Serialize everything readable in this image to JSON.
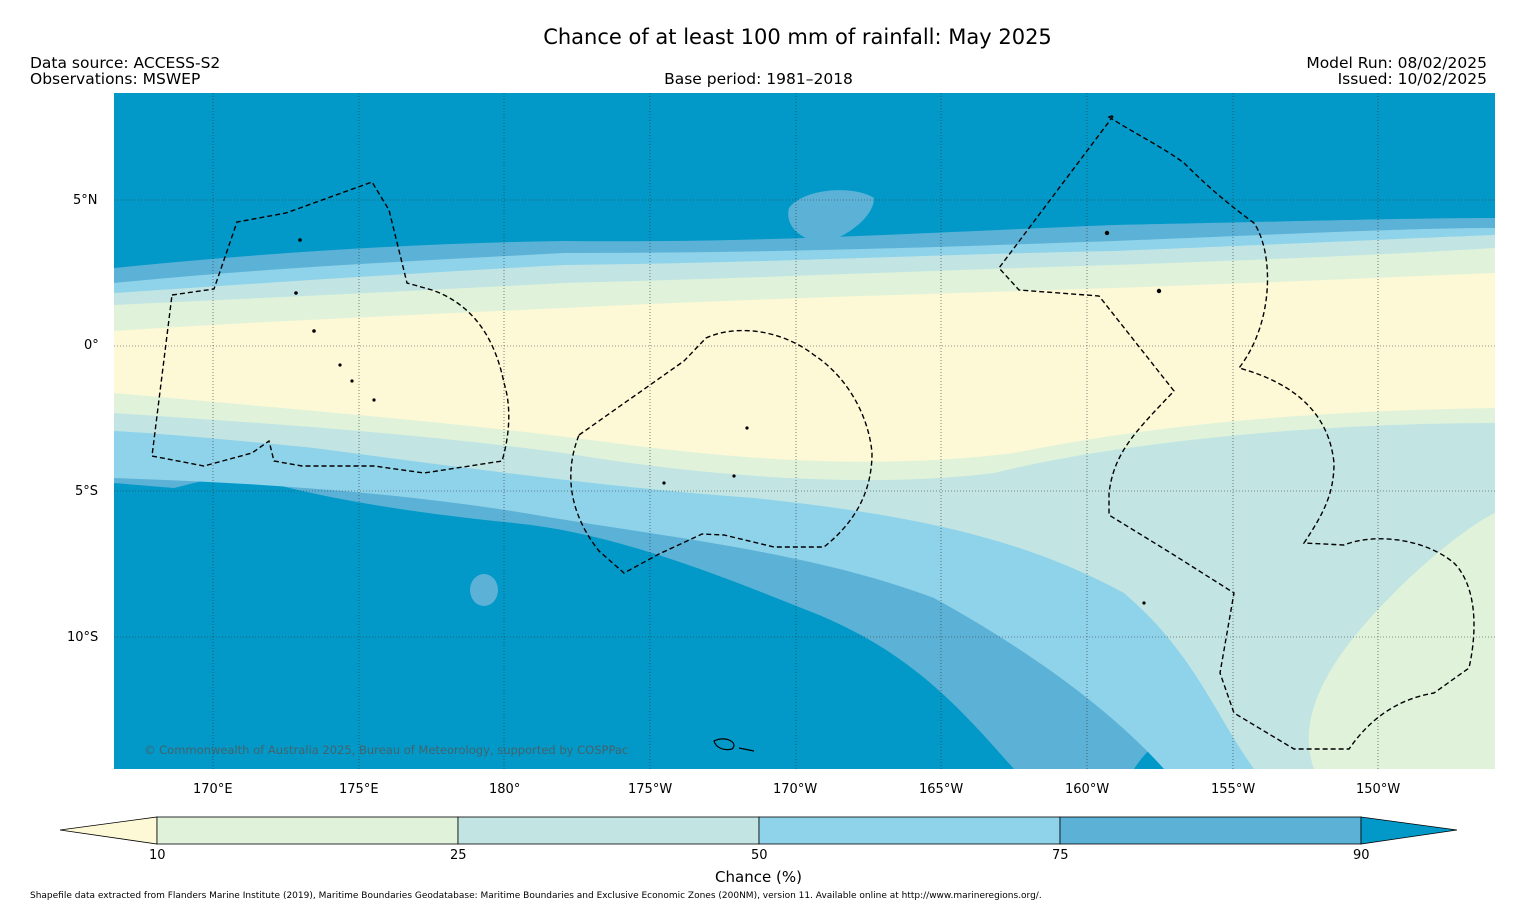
{
  "title": "Chance of at least 100 mm of rainfall: May 2025",
  "header": {
    "data_source": "Data source: ACCESS-S2",
    "observations": "Observations: MSWEP",
    "base_period": "Base period: 1981–2018",
    "model_run": "Model Run: 08/02/2025",
    "issued": "Issued: 10/02/2025"
  },
  "map": {
    "lat_labels": [
      "5°N",
      "0°",
      "5°S",
      "10°S"
    ],
    "lon_labels": [
      "170°E",
      "175°E",
      "180°",
      "175°W",
      "170°W",
      "165°W",
      "160°W",
      "155°W",
      "150°W"
    ],
    "copyright": "© Commonwealth of Australia 2025, Bureau of Meteorology, supported by COSPPac"
  },
  "colorbar": {
    "label": "Chance (%)",
    "ticks": [
      "10",
      "25",
      "50",
      "75",
      "90"
    ],
    "colors": [
      "#fdf8d6",
      "#e0f3da",
      "#c2e5e3",
      "#8fd3ea",
      "#5cb2d6",
      "#0299c8"
    ]
  },
  "footnote": "Shapefile data extracted from Flanders Marine Institute (2019), Maritime Boundaries Geodatabase: Maritime Boundaries and Exclusive Economic Zones (200NM), version 11. Available online at http://www.marineregions.org/."
}
